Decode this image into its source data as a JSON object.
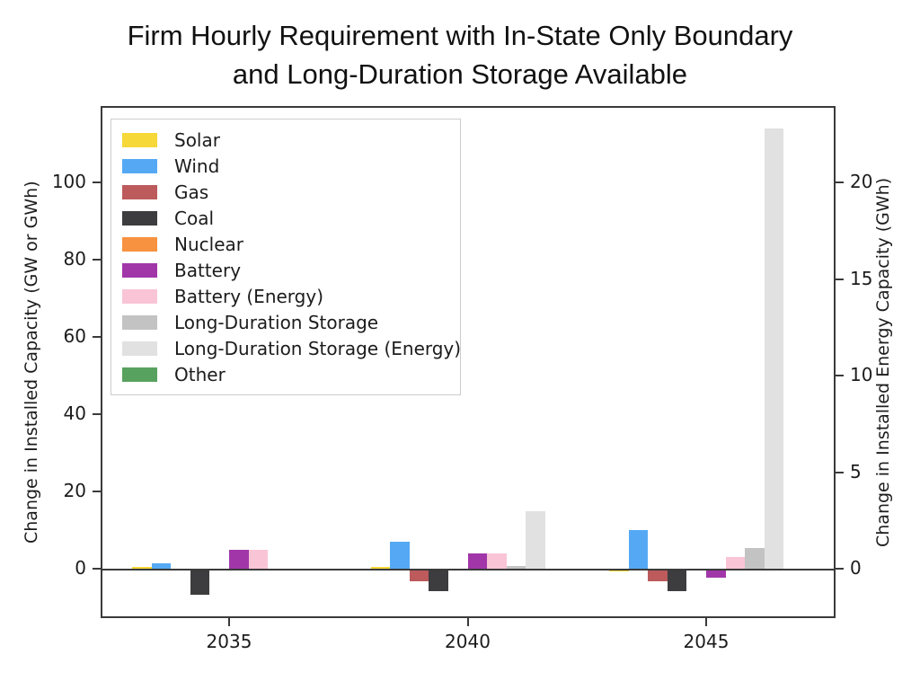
{
  "title": {
    "line1": "Firm Hourly Requirement with In-State Only Boundary",
    "line2": "and Long-Duration Storage Available"
  },
  "axes": {
    "left": {
      "label": "Change in Installed Capacity (GW or GWh)",
      "ticks": [
        "0",
        "20",
        "40",
        "60",
        "80",
        "100"
      ],
      "tick_values": [
        0,
        20,
        40,
        60,
        80,
        100
      ]
    },
    "right": {
      "label": "Change in Installed Energy Capacity (GWh)",
      "ticks": [
        "0",
        "5",
        "10",
        "15",
        "20"
      ],
      "tick_values": [
        0,
        5,
        10,
        15,
        20
      ]
    },
    "x": {
      "ticks": [
        "2035",
        "2040",
        "2045"
      ]
    }
  },
  "chart_data": {
    "type": "bar",
    "title": "Firm Hourly Requirement with In-State Only Boundary and Long-Duration Storage Available",
    "categories": [
      "2035",
      "2040",
      "2045"
    ],
    "series": [
      {
        "name": "Solar",
        "color": "#F6D838",
        "axis": "left",
        "unit": "GW",
        "values": [
          0.5,
          0.5,
          -0.5
        ]
      },
      {
        "name": "Wind",
        "color": "#55A9F4",
        "axis": "left",
        "unit": "GW",
        "values": [
          1.5,
          7,
          10
        ]
      },
      {
        "name": "Gas",
        "color": "#BC5A5C",
        "axis": "left",
        "unit": "GW",
        "values": [
          0,
          -3,
          -3
        ]
      },
      {
        "name": "Coal",
        "color": "#3D3D3F",
        "axis": "left",
        "unit": "GW",
        "values": [
          -6.5,
          -5.5,
          -5.5
        ]
      },
      {
        "name": "Nuclear",
        "color": "#F79240",
        "axis": "left",
        "unit": "GW",
        "values": [
          0,
          0,
          0
        ]
      },
      {
        "name": "Battery",
        "color": "#A136A9",
        "axis": "left",
        "unit": "GW",
        "values": [
          5,
          4,
          -2
        ]
      },
      {
        "name": "Battery (Energy)",
        "color": "#F9C4D6",
        "axis": "right",
        "unit": "GWh",
        "values": [
          1.0,
          0.8,
          0.6
        ]
      },
      {
        "name": "Long-Duration Storage",
        "color": "#C3C3C3",
        "axis": "left",
        "unit": "GW",
        "values": [
          0,
          0.8,
          5.4
        ]
      },
      {
        "name": "Long-Duration Storage (Energy)",
        "color": "#E1E1E1",
        "axis": "right",
        "unit": "GWh",
        "values": [
          0,
          3.0,
          22.8
        ]
      },
      {
        "name": "Other",
        "color": "#57A25F",
        "axis": "left",
        "unit": "GW",
        "values": [
          0,
          0,
          0
        ]
      }
    ],
    "xlabel": "",
    "ylabel_left": "Change in Installed Capacity (GW or GWh)",
    "ylabel_right": "Change in Installed Energy Capacity (GWh)",
    "ylim_left": [
      -13,
      120
    ],
    "ylim_right": [
      -2.6,
      24
    ],
    "axis_ratio_left_per_right": 5,
    "legend_position": "upper left",
    "grid": false
  }
}
